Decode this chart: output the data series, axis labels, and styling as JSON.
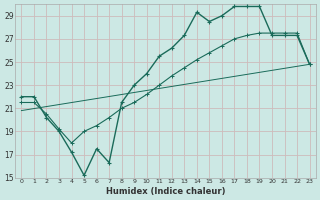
{
  "bg_color": "#cce8e4",
  "grid_color_major": "#b8d8d4",
  "grid_color_minor": "#d8ecea",
  "line_color": "#1a6b5a",
  "xlabel": "Humidex (Indice chaleur)",
  "xlim": [
    -0.5,
    23.5
  ],
  "ylim": [
    15,
    30
  ],
  "yticks": [
    15,
    17,
    19,
    21,
    23,
    25,
    27,
    29
  ],
  "xticks": [
    0,
    1,
    2,
    3,
    4,
    5,
    6,
    7,
    8,
    9,
    10,
    11,
    12,
    13,
    14,
    15,
    16,
    17,
    18,
    19,
    20,
    21,
    22,
    23
  ],
  "curve1_x": [
    0,
    1,
    2,
    3,
    4,
    5,
    6,
    7,
    8,
    9,
    10,
    11,
    12,
    13,
    14,
    15,
    16,
    17,
    18,
    19,
    20,
    21,
    22,
    23
  ],
  "curve1_y": [
    22,
    22,
    20.2,
    19.0,
    17.2,
    15.2,
    17.5,
    16.3,
    21.5,
    23.0,
    24.0,
    25.5,
    26.2,
    27.3,
    29.3,
    28.5,
    29.0,
    29.8,
    29.8,
    29.8,
    27.3,
    27.3,
    27.3,
    24.8
  ],
  "curve2_x": [
    0,
    1,
    2,
    3,
    4,
    5,
    6,
    7,
    8,
    9,
    10,
    11,
    12,
    13,
    14,
    15,
    16,
    17,
    18,
    19,
    20,
    21,
    22,
    23
  ],
  "curve2_y": [
    21.5,
    21.5,
    20.5,
    19.2,
    18.0,
    19.0,
    19.5,
    20.2,
    21.0,
    21.5,
    22.2,
    23.0,
    23.8,
    24.5,
    25.2,
    25.8,
    26.4,
    27.0,
    27.3,
    27.5,
    27.5,
    27.5,
    27.5,
    24.8
  ],
  "curve3_x": [
    0,
    23
  ],
  "curve3_y": [
    20.8,
    24.8
  ],
  "lw1": 1.0,
  "lw2": 0.8,
  "lw3": 0.7
}
